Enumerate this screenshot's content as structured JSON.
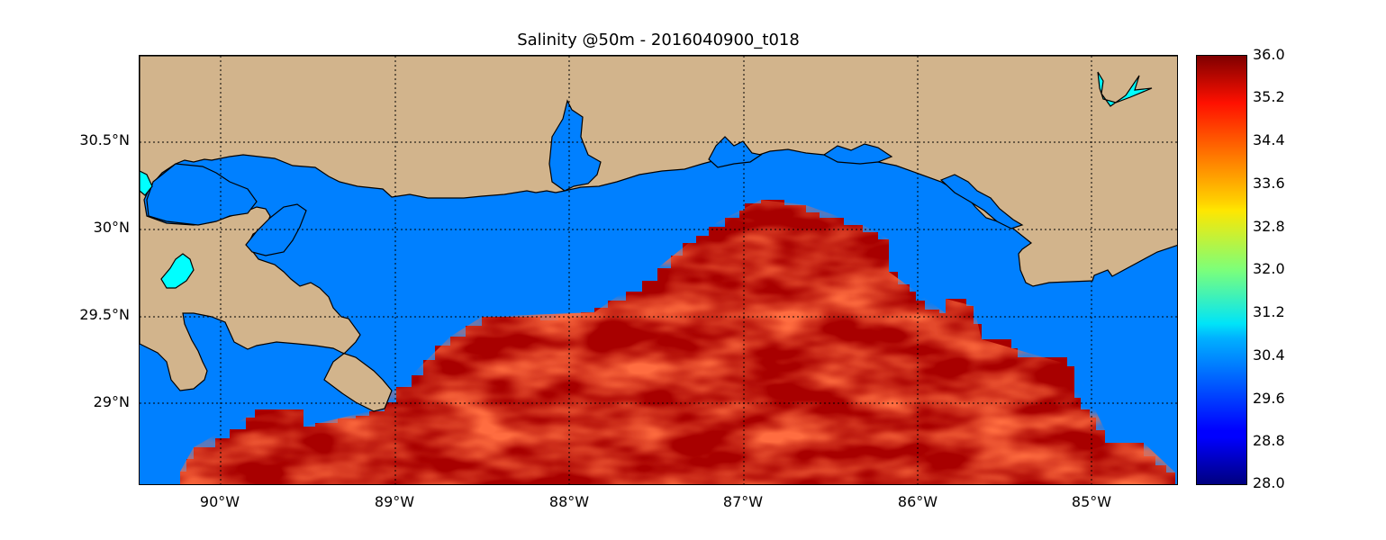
{
  "title": "Salinity @50m - 2016040900_t018",
  "map": {
    "lat_ticks": [
      "30.5°N",
      "30°N",
      "29.5°N",
      "29°N"
    ],
    "lon_ticks": [
      "90°W",
      "89°W",
      "88°W",
      "87°W",
      "86°W",
      "85°W"
    ],
    "extent": {
      "lon": [
        -90.47,
        -84.5
      ],
      "lat": [
        28.55,
        31.0
      ]
    },
    "colors": {
      "land": "#d2b48c",
      "low_salinity_water": "#0080ff",
      "lake": "#00ffff",
      "high_salinity": "#b00000"
    }
  },
  "colorbar": {
    "ticks": [
      "36.0",
      "35.2",
      "34.4",
      "33.6",
      "32.8",
      "32.0",
      "31.2",
      "30.4",
      "29.6",
      "28.8",
      "28.0"
    ],
    "range": [
      28.0,
      36.0
    ],
    "colormap": "jet"
  }
}
